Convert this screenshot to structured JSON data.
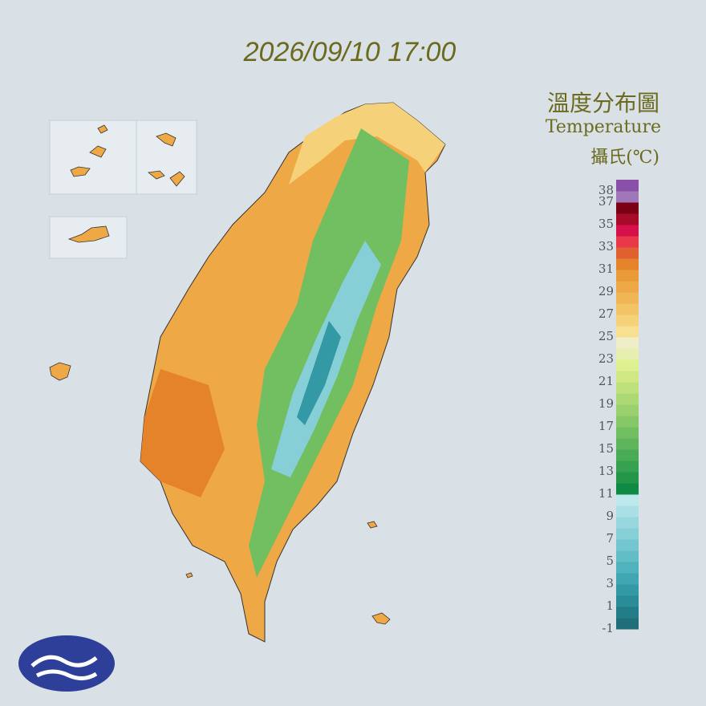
{
  "header": {
    "timestamp": "2026/09/10 17:00"
  },
  "legend": {
    "title": "溫度分布圖",
    "subtitle": "Temperature",
    "unit": "攝氏(℃)",
    "labels": [
      38,
      37,
      35,
      33,
      31,
      29,
      27,
      25,
      23,
      21,
      19,
      17,
      15,
      13,
      11,
      9,
      7,
      5,
      3,
      1,
      -1
    ],
    "colors": [
      "#1f6e7a",
      "#237d89",
      "#2a8c97",
      "#3399a4",
      "#40a6b1",
      "#4fb2bc",
      "#62bdc6",
      "#74c6cf",
      "#86cfd7",
      "#98d7de",
      "#aadfe5",
      "#bde8ec",
      "#0f8a44",
      "#23964a",
      "#36a150",
      "#4aab55",
      "#5eb55b",
      "#72bf61",
      "#86c867",
      "#9ad16e",
      "#acd974",
      "#bee17b",
      "#cfe884",
      "#def08f",
      "#e6efb0",
      "#f0eec8",
      "#f7e08f",
      "#f5d27a",
      "#f2c465",
      "#f0b655",
      "#eea846",
      "#eb9a38",
      "#e5832a",
      "#e0602f",
      "#e8384a",
      "#d6104a",
      "#a80a2a",
      "#7a0012",
      "#a077b8",
      "#8a4fa8"
    ]
  }
}
